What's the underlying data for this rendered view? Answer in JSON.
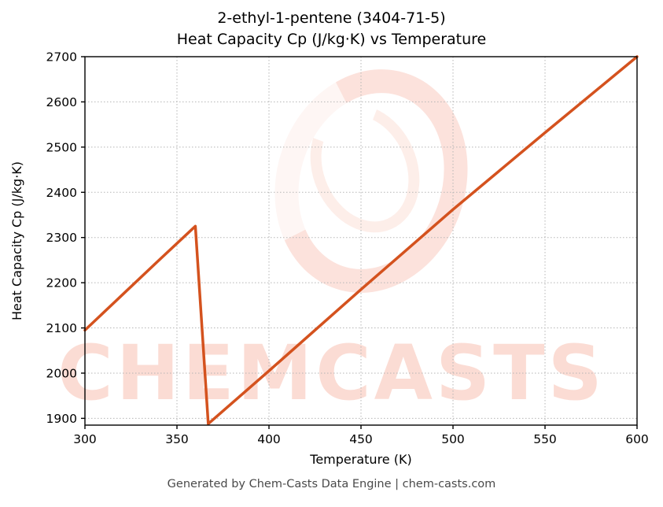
{
  "header": {
    "title_lines": [
      "2-ethyl-1-pentene (3404-71-5)",
      "Heat Capacity Cp (J/kg·K) vs Temperature"
    ]
  },
  "footer": {
    "text": "Generated by Chem-Casts Data Engine | chem-casts.com"
  },
  "watermark": {
    "text": "CHEMCASTS",
    "color": "#ee603a"
  },
  "chart_data": {
    "type": "line",
    "title": "2-ethyl-1-pentene (3404-71-5) — Heat Capacity Cp (J/kg·K) vs Temperature",
    "xlabel": "Temperature (K)",
    "ylabel": "Heat Capacity Cp (J/kg·K)",
    "xlim": [
      300,
      600
    ],
    "ylim": [
      1885,
      2700
    ],
    "xticks": [
      300,
      350,
      400,
      450,
      500,
      550,
      600
    ],
    "yticks": [
      1900,
      2000,
      2100,
      2200,
      2300,
      2400,
      2500,
      2600,
      2700
    ],
    "grid": true,
    "legend": false,
    "line_color": "#d4521e",
    "grid_color": "#b5b5b5",
    "series": [
      {
        "name": "Heat Capacity Cp (J/kg·K)",
        "x": [
          300,
          320,
          340,
          360,
          367,
          400,
          450,
          500,
          550,
          600
        ],
        "y": [
          2095,
          2172,
          2249,
          2325,
          1888,
          2005,
          2185,
          2362,
          2532,
          2700
        ]
      }
    ]
  }
}
